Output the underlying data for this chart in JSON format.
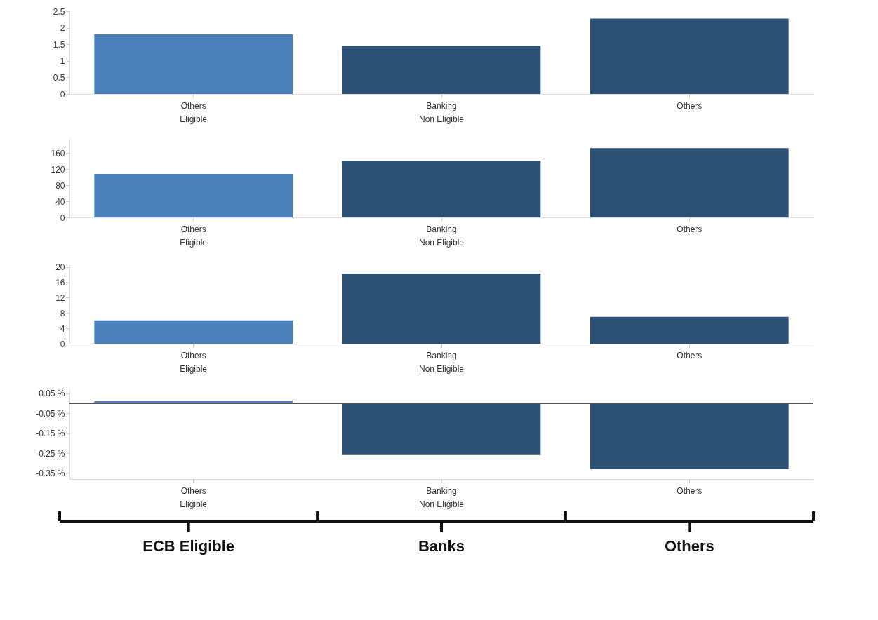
{
  "chart_data": [
    {
      "type": "bar",
      "categories": [
        "Others",
        "Banking",
        "Others"
      ],
      "values": [
        1.8,
        1.45,
        2.28
      ],
      "colors": [
        "#4a81bb",
        "#2d5175",
        "#2d5175"
      ],
      "ylim": [
        0,
        2.5
      ],
      "yticks": [
        0,
        0.5,
        1,
        1.5,
        2,
        2.5
      ],
      "grid": false,
      "annotations": [
        "Eligible",
        "Non Eligible"
      ]
    },
    {
      "type": "bar",
      "categories": [
        "Others",
        "Banking",
        "Others"
      ],
      "values": [
        108,
        141,
        172
      ],
      "colors": [
        "#4a81bb",
        "#2d5175",
        "#2d5175"
      ],
      "ylim": [
        0,
        195
      ],
      "yticks": [
        0,
        40,
        80,
        120,
        160
      ],
      "grid": false,
      "annotations": [
        "Eligible",
        "Non Eligible"
      ]
    },
    {
      "type": "bar",
      "categories": [
        "Others",
        "Banking",
        "Others"
      ],
      "values": [
        6.1,
        18.3,
        7.0
      ],
      "colors": [
        "#4a81bb",
        "#2d5175",
        "#2d5175"
      ],
      "ylim": [
        0,
        20.5
      ],
      "yticks": [
        0,
        4,
        8,
        12,
        16,
        20
      ],
      "grid": false,
      "annotations": [
        "Eligible",
        "Non Eligible"
      ]
    },
    {
      "type": "bar",
      "categories": [
        "Others",
        "Banking",
        "Others"
      ],
      "values": [
        0.01,
        -0.26,
        -0.33
      ],
      "colors": [
        "#4a81bb",
        "#2d5175",
        "#2d5175"
      ],
      "ylim": [
        -0.38,
        0.07
      ],
      "yticks": [
        {
          "value": -0.35,
          "label": "-0.35 %"
        },
        {
          "value": -0.25,
          "label": "-0.25 %"
        },
        {
          "value": -0.15,
          "label": "-0.15 %"
        },
        {
          "value": -0.05,
          "label": "-0.05 %"
        },
        {
          "value": 0.05,
          "label": "0.05 %"
        }
      ],
      "grid": false,
      "ref_lines": [
        {
          "axis": "y",
          "value": 0,
          "color": "#555555"
        }
      ],
      "annotations": [
        "Eligible",
        "Non Eligible",
        "ECB Eligible",
        "Banks",
        "Others"
      ]
    }
  ]
}
